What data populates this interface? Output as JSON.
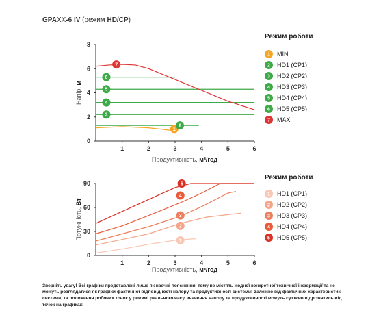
{
  "header": {
    "title_bold_1": "GPA",
    "title_light": "XX",
    "title_bold_2": "-6 IV",
    "title_paren_open": " (режим ",
    "title_mode": "HD/CP",
    "title_paren_close": ")"
  },
  "disclaimer": {
    "text": "Зверніть увагу! Всі графіки представлені лише як наочні пояснення, тому не містять жодної конкретної технічної інформації та не можуть розглядатися як графіки фактичної відповідності напору та продуктивності системи! Залежно від фактичних характеристик системи, та положення робочих точок у режимі реального часу, значення напору та продуктивності можуть суттєво відрізнятись від точок на графіках!"
  },
  "colors": {
    "min": "#F5A623",
    "hd": "#3DAA48",
    "max": "#E03535",
    "cp1": "#F9C7B3",
    "cp2": "#F5A487",
    "cp3": "#EE7F5E",
    "cp4": "#E85A3A",
    "cp5": "#D93025",
    "grid": "#DDDDDD",
    "axis": "#333333"
  },
  "chart_data": [
    {
      "type": "line",
      "xlabel_prefix": "Продуктивність, ",
      "xlabel_unit": "м³/год",
      "ylabel_prefix": "Напір, ",
      "ylabel_unit": "м",
      "xlim": [
        0,
        6
      ],
      "ylim": [
        0,
        8
      ],
      "xticks": [
        1,
        2,
        3,
        4,
        5,
        6
      ],
      "yticks": [
        0,
        2,
        4,
        6,
        8
      ],
      "legend_title": "Режим роботи",
      "legend_position": "right",
      "series": [
        {
          "name": "MIN",
          "badge": "1",
          "color": "#F5A623",
          "x": [
            0,
            1.0,
            2.0,
            3.0
          ],
          "y": [
            1.1,
            1.2,
            1.1,
            0.85
          ],
          "badge_at": [
            2.97,
            1.0
          ]
        },
        {
          "name": "HD1 (CP1)",
          "badge": "2",
          "color": "#3DAA48",
          "x": [
            0,
            3.9
          ],
          "y": [
            1.3,
            1.3
          ],
          "badge_at": [
            3.18,
            1.3
          ]
        },
        {
          "name": "HD2 (CP2)",
          "badge": "3",
          "color": "#3DAA48",
          "x": [
            0,
            6
          ],
          "y": [
            2.2,
            2.2
          ],
          "badge_at": [
            0.4,
            2.2
          ]
        },
        {
          "name": "HD3 (CP3)",
          "badge": "4",
          "color": "#3DAA48",
          "x": [
            0,
            6
          ],
          "y": [
            3.2,
            3.2
          ],
          "badge_at": [
            0.4,
            3.2
          ]
        },
        {
          "name": "HD4 (CP4)",
          "badge": "5",
          "color": "#3DAA48",
          "x": [
            0,
            6
          ],
          "y": [
            4.3,
            4.3
          ],
          "badge_at": [
            0.4,
            4.3
          ]
        },
        {
          "name": "HD5 (CP5)",
          "badge": "6",
          "color": "#3DAA48",
          "x": [
            0,
            3.0
          ],
          "y": [
            5.3,
            5.3
          ],
          "badge_at": [
            0.4,
            5.3
          ]
        },
        {
          "name": "MAX",
          "badge": "7",
          "color": "#E03535",
          "x": [
            0,
            0.5,
            1.0,
            1.5,
            2.0,
            3.0,
            4.0,
            5.0,
            6.0
          ],
          "y": [
            6.2,
            6.3,
            6.35,
            6.3,
            6.0,
            5.1,
            4.2,
            3.3,
            2.6
          ],
          "badge_at": [
            0.78,
            6.35
          ]
        }
      ]
    },
    {
      "type": "line",
      "xlabel_prefix": "Продуктивність, ",
      "xlabel_unit": "м³/год",
      "ylabel_prefix": "Потужність, ",
      "ylabel_unit": "Вт",
      "xlim": [
        0,
        6
      ],
      "ylim": [
        0,
        90
      ],
      "xticks": [
        1,
        2,
        3,
        4,
        5,
        6
      ],
      "yticks": [
        0,
        30,
        60,
        90
      ],
      "legend_title": "Режим роботи",
      "legend_position": "right",
      "series": [
        {
          "name": "HD1 (CP1)",
          "badge": "1",
          "color": "#F9C7B3",
          "x": [
            0,
            1.0,
            2.0,
            3.0,
            3.8
          ],
          "y": [
            3,
            8,
            14,
            19,
            21
          ],
          "badge_at": [
            3.2,
            19
          ]
        },
        {
          "name": "HD2 (CP2)",
          "badge": "2",
          "color": "#F5A487",
          "x": [
            0,
            1.0,
            2.0,
            3.2,
            4.2,
            5.5
          ],
          "y": [
            13,
            20,
            27,
            40,
            48,
            53
          ],
          "badge_at": [
            3.2,
            37
          ]
        },
        {
          "name": "HD3 (CP3)",
          "badge": "3",
          "color": "#EE7F5E",
          "x": [
            0,
            1.0,
            2.0,
            3.2,
            4.0,
            5.0,
            5.3
          ],
          "y": [
            18,
            27,
            36,
            49,
            61,
            78,
            80
          ],
          "badge_at": [
            3.2,
            50
          ]
        },
        {
          "name": "HD4 (CP4)",
          "badge": "4",
          "color": "#E85A3A",
          "x": [
            0,
            1.0,
            2.0,
            3.2,
            4.0,
            4.7,
            6.0
          ],
          "y": [
            27,
            37,
            50,
            66,
            78,
            90,
            90
          ],
          "badge_at": [
            3.2,
            75
          ]
        },
        {
          "name": "HD5 (CP5)",
          "badge": "5",
          "color": "#D93025",
          "x": [
            0,
            1.0,
            2.0,
            3.0,
            3.6,
            6.0
          ],
          "y": [
            40,
            55,
            70,
            85,
            90,
            90
          ],
          "badge_at": [
            3.25,
            90
          ]
        }
      ]
    }
  ]
}
